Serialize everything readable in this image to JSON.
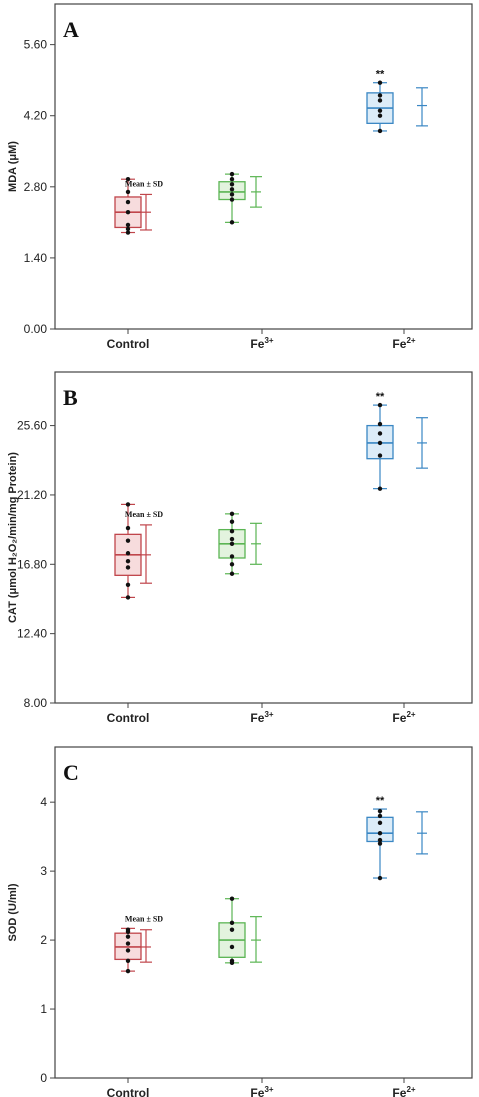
{
  "chart_data": [
    {
      "type": "box",
      "panel": "A",
      "ylabel": "MDA (μM)",
      "ylim": [
        0,
        6.4
      ],
      "yticks": [
        0.0,
        1.4,
        2.8,
        4.2,
        5.6
      ],
      "ytick_labels": [
        "0.00",
        "1.40",
        "2.80",
        "4.20",
        "5.60"
      ],
      "categories": [
        "Control",
        "Fe",
        "Fe"
      ],
      "category_sups": [
        "",
        "3+",
        "2+"
      ],
      "colors": [
        "#c0454b",
        "#5bb553",
        "#3a87c4"
      ],
      "fills": [
        "#f7dcdd",
        "#e3f3de",
        "#dcecf8"
      ],
      "boxes": [
        {
          "min": 1.9,
          "q1": 2.0,
          "median": 2.3,
          "q3": 2.6,
          "max": 2.95
        },
        {
          "min": 2.1,
          "q1": 2.55,
          "median": 2.7,
          "q3": 2.9,
          "max": 3.05
        },
        {
          "min": 3.9,
          "q1": 4.05,
          "median": 4.35,
          "q3": 4.65,
          "max": 4.85
        }
      ],
      "points": [
        [
          1.9,
          1.97,
          2.05,
          2.3,
          2.5,
          2.7,
          2.95
        ],
        [
          2.1,
          2.55,
          2.65,
          2.75,
          2.85,
          2.95,
          3.05
        ],
        [
          3.9,
          4.2,
          4.3,
          4.5,
          4.6,
          4.85
        ]
      ],
      "mean_sd": [
        {
          "mean": 2.3,
          "lower": 1.95,
          "upper": 2.65
        },
        {
          "mean": 2.7,
          "lower": 2.4,
          "upper": 3.0
        },
        {
          "mean": 4.4,
          "lower": 4.0,
          "upper": 4.75
        }
      ],
      "significance": [
        "",
        "",
        "**"
      ],
      "annotation": "Mean ± SD"
    },
    {
      "type": "box",
      "panel": "B",
      "ylabel": "CAT (μmol H₂O₂/min/mg Protein)",
      "ylim": [
        8.0,
        29.0
      ],
      "yticks": [
        8.0,
        12.4,
        16.8,
        21.2,
        25.6
      ],
      "ytick_labels": [
        "8.00",
        "12.40",
        "16.80",
        "21.20",
        "25.60"
      ],
      "categories": [
        "Control",
        "Fe",
        "Fe"
      ],
      "category_sups": [
        "",
        "3+",
        "2+"
      ],
      "colors": [
        "#c0454b",
        "#5bb553",
        "#3a87c4"
      ],
      "fills": [
        "#f7dcdd",
        "#e3f3de",
        "#dcecf8"
      ],
      "boxes": [
        {
          "min": 14.7,
          "q1": 16.1,
          "median": 17.4,
          "q3": 18.7,
          "max": 20.6
        },
        {
          "min": 16.2,
          "q1": 17.2,
          "median": 18.1,
          "q3": 19.0,
          "max": 20.0
        },
        {
          "min": 21.6,
          "q1": 23.5,
          "median": 24.5,
          "q3": 25.6,
          "max": 26.9
        }
      ],
      "points": [
        [
          14.7,
          15.5,
          16.6,
          17.0,
          17.5,
          18.3,
          19.1,
          20.6
        ],
        [
          16.2,
          16.8,
          17.3,
          18.1,
          18.4,
          18.9,
          19.5,
          20.0
        ],
        [
          21.6,
          23.7,
          24.5,
          25.1,
          25.7,
          26.9
        ]
      ],
      "mean_sd": [
        {
          "mean": 17.4,
          "lower": 15.6,
          "upper": 19.3
        },
        {
          "mean": 18.1,
          "lower": 16.8,
          "upper": 19.4
        },
        {
          "mean": 24.5,
          "lower": 22.9,
          "upper": 26.1
        }
      ],
      "significance": [
        "",
        "",
        "**"
      ],
      "annotation": "Mean ± SD"
    },
    {
      "type": "box",
      "panel": "C",
      "ylabel": "SOD (U/ml)",
      "ylim": [
        0,
        4.8
      ],
      "yticks": [
        0,
        1,
        2,
        3,
        4
      ],
      "ytick_labels": [
        "0",
        "1",
        "2",
        "3",
        "4"
      ],
      "categories": [
        "Control",
        "Fe",
        "Fe"
      ],
      "category_sups": [
        "",
        "3+",
        "2+"
      ],
      "colors": [
        "#c0454b",
        "#5bb553",
        "#3a87c4"
      ],
      "fills": [
        "#f7dcdd",
        "#e3f3de",
        "#dcecf8"
      ],
      "boxes": [
        {
          "min": 1.55,
          "q1": 1.72,
          "median": 1.9,
          "q3": 2.1,
          "max": 2.17
        },
        {
          "min": 1.67,
          "q1": 1.75,
          "median": 2.0,
          "q3": 2.25,
          "max": 2.6
        },
        {
          "min": 2.9,
          "q1": 3.43,
          "median": 3.55,
          "q3": 3.78,
          "max": 3.9
        }
      ],
      "points": [
        [
          1.55,
          1.7,
          1.85,
          1.95,
          2.05,
          2.12,
          2.15
        ],
        [
          1.67,
          1.7,
          1.9,
          2.15,
          2.25,
          2.6
        ],
        [
          2.9,
          3.4,
          3.45,
          3.55,
          3.7,
          3.8,
          3.87
        ]
      ],
      "mean_sd": [
        {
          "mean": 1.9,
          "lower": 1.68,
          "upper": 2.15
        },
        {
          "mean": 2.0,
          "lower": 1.68,
          "upper": 2.34
        },
        {
          "mean": 3.55,
          "lower": 3.25,
          "upper": 3.86
        }
      ],
      "significance": [
        "",
        "",
        "**"
      ],
      "annotation": "Mean ± SD"
    }
  ]
}
